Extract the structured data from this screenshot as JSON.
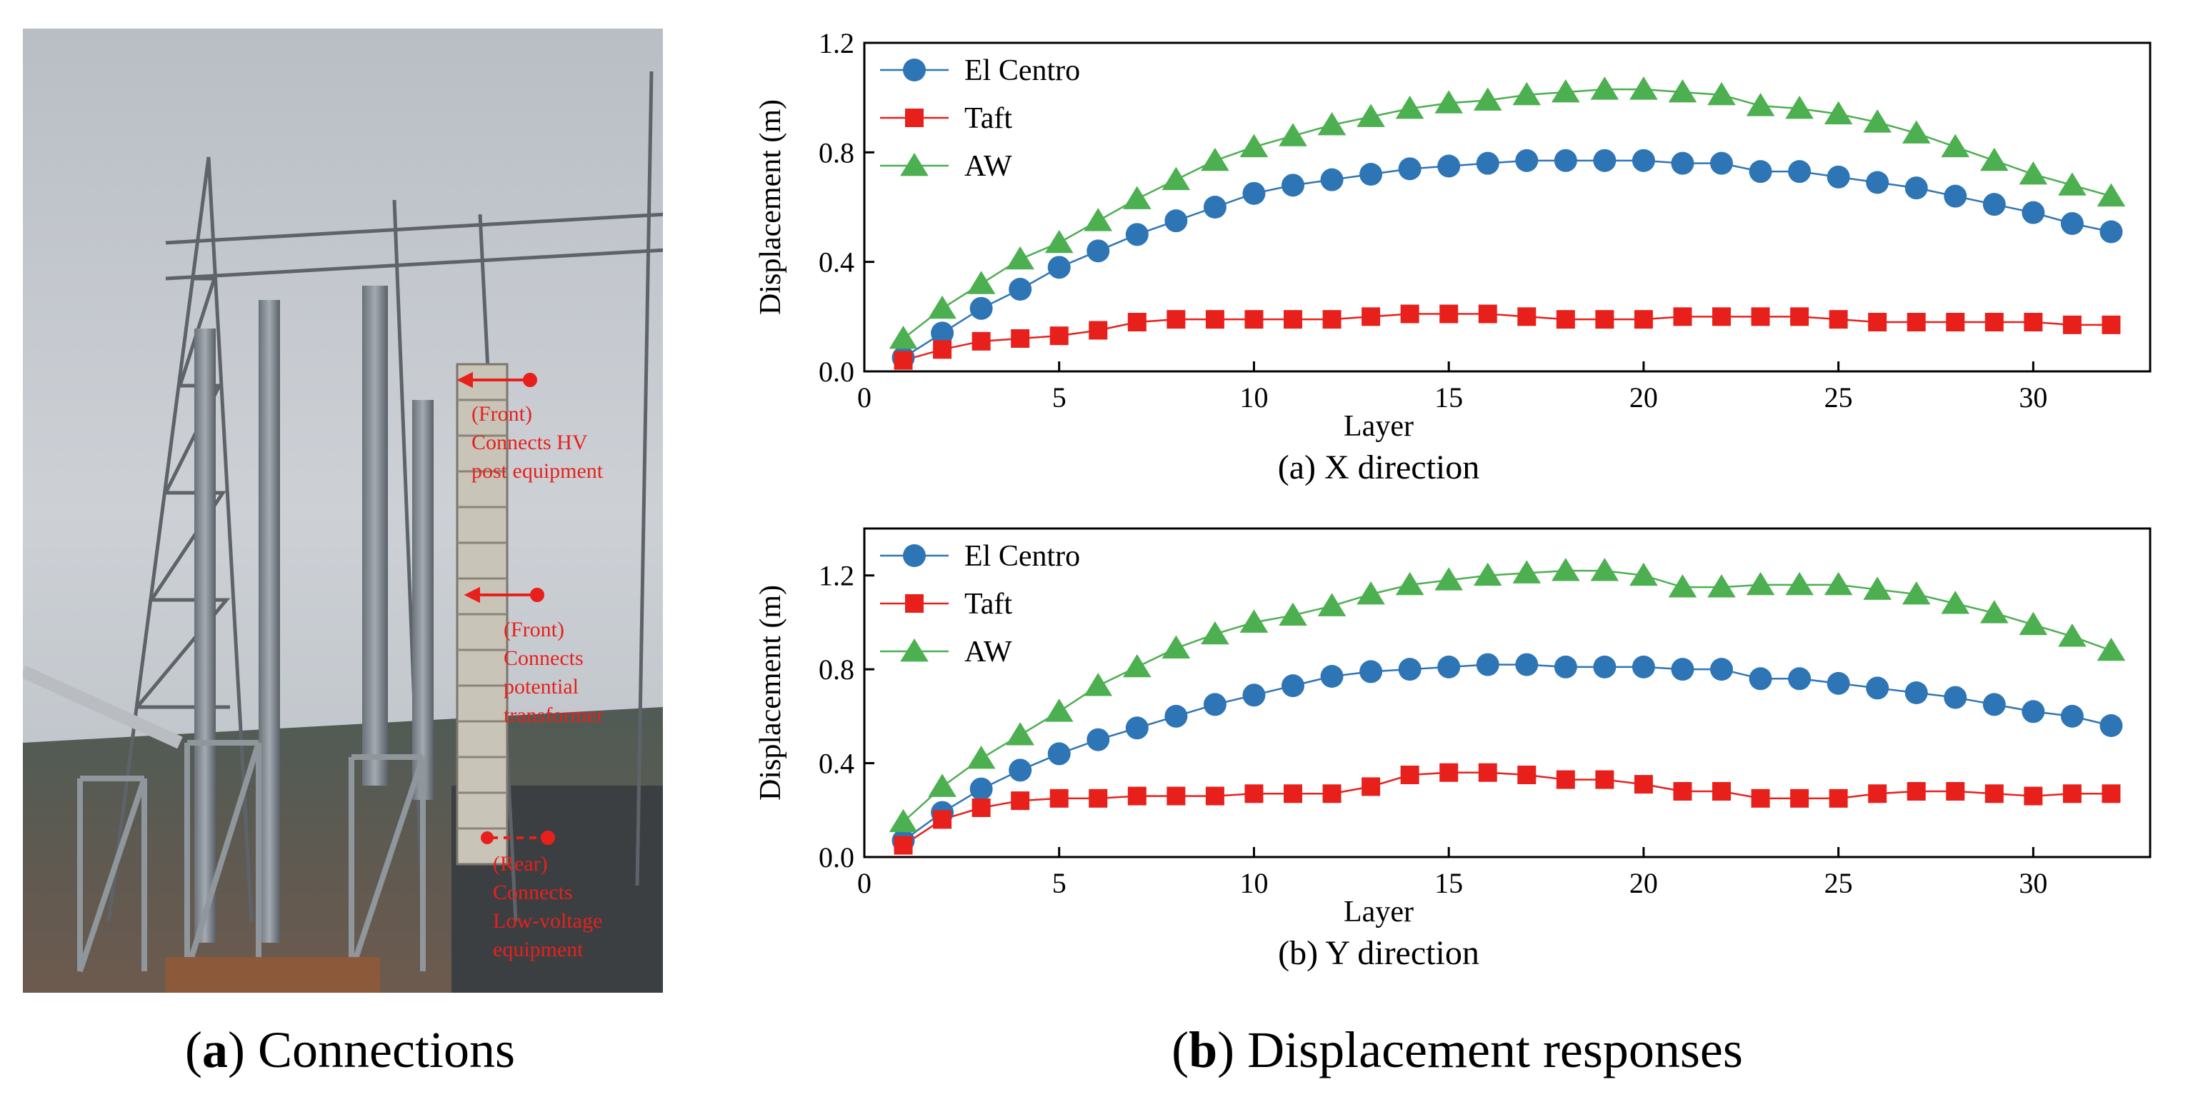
{
  "panel_a": {
    "caption_letter": "a",
    "caption_text": "Connections",
    "annotations": [
      {
        "lines": [
          "(Front)",
          "Connects HV",
          "post equipment"
        ]
      },
      {
        "lines": [
          "(Front)",
          "Connects",
          "potential",
          "transformer"
        ]
      },
      {
        "lines": [
          "(Rear)",
          "Connects",
          "Low-voltage",
          "equipment"
        ]
      }
    ],
    "annotation_color": "#e8201c"
  },
  "panel_b": {
    "caption_letter": "b",
    "caption_text": "Displacement responses"
  },
  "colors": {
    "el_centro": "#2e75b6",
    "taft": "#e8201c",
    "aw": "#4caf50"
  },
  "chart_data": [
    {
      "type": "line",
      "subcaption": "(a) X direction",
      "xlabel": "Layer",
      "ylabel": "Displacement (m)",
      "xlim": [
        0,
        33
      ],
      "ylim": [
        0,
        1.2
      ],
      "xticks": [
        0,
        5,
        10,
        15,
        20,
        25,
        30
      ],
      "yticks": [
        "0.0",
        "0.4",
        "0.8",
        "1.2"
      ],
      "legend_position": "top-left",
      "x": [
        1,
        2,
        3,
        4,
        5,
        6,
        7,
        8,
        9,
        10,
        11,
        12,
        13,
        14,
        15,
        16,
        17,
        18,
        19,
        20,
        21,
        22,
        23,
        24,
        25,
        26,
        27,
        28,
        29,
        30,
        31,
        32
      ],
      "series": [
        {
          "name": "El Centro",
          "marker": "circle",
          "values": [
            0.05,
            0.14,
            0.23,
            0.3,
            0.38,
            0.44,
            0.5,
            0.55,
            0.6,
            0.65,
            0.68,
            0.7,
            0.72,
            0.74,
            0.75,
            0.76,
            0.77,
            0.77,
            0.77,
            0.77,
            0.76,
            0.76,
            0.73,
            0.73,
            0.71,
            0.69,
            0.67,
            0.64,
            0.61,
            0.58,
            0.54,
            0.51
          ]
        },
        {
          "name": "Taft",
          "marker": "square",
          "values": [
            0.04,
            0.08,
            0.11,
            0.12,
            0.13,
            0.15,
            0.18,
            0.19,
            0.19,
            0.19,
            0.19,
            0.19,
            0.2,
            0.21,
            0.21,
            0.21,
            0.2,
            0.19,
            0.19,
            0.19,
            0.2,
            0.2,
            0.2,
            0.2,
            0.19,
            0.18,
            0.18,
            0.18,
            0.18,
            0.18,
            0.17,
            0.17
          ]
        },
        {
          "name": "AW",
          "marker": "triangle",
          "values": [
            0.12,
            0.23,
            0.32,
            0.41,
            0.47,
            0.55,
            0.63,
            0.7,
            0.77,
            0.82,
            0.86,
            0.9,
            0.93,
            0.96,
            0.98,
            0.99,
            1.01,
            1.02,
            1.03,
            1.03,
            1.02,
            1.01,
            0.97,
            0.96,
            0.94,
            0.91,
            0.87,
            0.82,
            0.77,
            0.72,
            0.68,
            0.64
          ]
        }
      ]
    },
    {
      "type": "line",
      "subcaption": "(b) Y direction",
      "xlabel": "Layer",
      "ylabel": "Displacement (m)",
      "xlim": [
        0,
        33
      ],
      "ylim": [
        0,
        1.4
      ],
      "xticks": [
        0,
        5,
        10,
        15,
        20,
        25,
        30
      ],
      "yticks": [
        "0.0",
        "0.4",
        "0.8",
        "1.2"
      ],
      "legend_position": "top-left",
      "x": [
        1,
        2,
        3,
        4,
        5,
        6,
        7,
        8,
        9,
        10,
        11,
        12,
        13,
        14,
        15,
        16,
        17,
        18,
        19,
        20,
        21,
        22,
        23,
        24,
        25,
        26,
        27,
        28,
        29,
        30,
        31,
        32
      ],
      "series": [
        {
          "name": "El Centro",
          "marker": "circle",
          "values": [
            0.07,
            0.19,
            0.29,
            0.37,
            0.44,
            0.5,
            0.55,
            0.6,
            0.65,
            0.69,
            0.73,
            0.77,
            0.79,
            0.8,
            0.81,
            0.82,
            0.82,
            0.81,
            0.81,
            0.81,
            0.8,
            0.8,
            0.76,
            0.76,
            0.74,
            0.72,
            0.7,
            0.68,
            0.65,
            0.62,
            0.6,
            0.56
          ]
        },
        {
          "name": "Taft",
          "marker": "square",
          "values": [
            0.05,
            0.16,
            0.21,
            0.24,
            0.25,
            0.25,
            0.26,
            0.26,
            0.26,
            0.27,
            0.27,
            0.27,
            0.3,
            0.35,
            0.36,
            0.36,
            0.35,
            0.33,
            0.33,
            0.31,
            0.28,
            0.28,
            0.25,
            0.25,
            0.25,
            0.27,
            0.28,
            0.28,
            0.27,
            0.26,
            0.27,
            0.27
          ]
        },
        {
          "name": "AW",
          "marker": "triangle",
          "values": [
            0.15,
            0.3,
            0.42,
            0.52,
            0.62,
            0.73,
            0.81,
            0.89,
            0.95,
            1.0,
            1.03,
            1.07,
            1.12,
            1.16,
            1.18,
            1.2,
            1.21,
            1.22,
            1.22,
            1.2,
            1.15,
            1.15,
            1.16,
            1.16,
            1.16,
            1.14,
            1.12,
            1.08,
            1.04,
            0.99,
            0.94,
            0.88
          ]
        }
      ]
    }
  ]
}
